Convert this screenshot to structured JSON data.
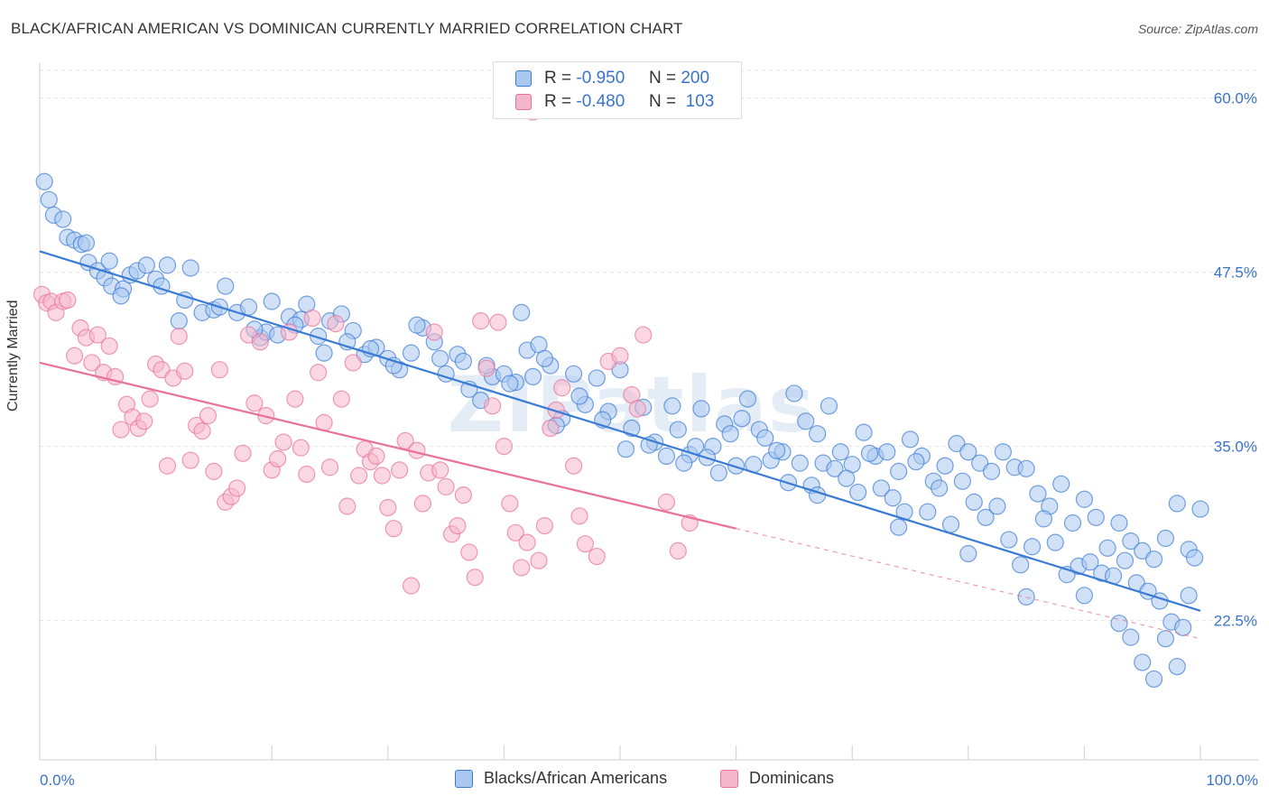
{
  "title": "BLACK/AFRICAN AMERICAN VS DOMINICAN CURRENTLY MARRIED CORRELATION CHART",
  "source": "Source: ZipAtlas.com",
  "colors": {
    "blue": "#3a7bd5",
    "blue_fill": "#a9c8f0",
    "pink": "#e8709a",
    "pink_fill": "#f5b6cb",
    "axis_text": "#3a74c9",
    "grid": "#e3e3e3"
  },
  "legend_top": {
    "rows": [
      {
        "r_label": "R =",
        "r_value": "-0.950",
        "n_label": "N =",
        "n_value": "200",
        "color": "blue"
      },
      {
        "r_label": "R =",
        "r_value": "-0.480",
        "n_label": "N =",
        "n_value": "103",
        "color": "pink"
      }
    ]
  },
  "legend_bottom": {
    "items": [
      {
        "label": "Blacks/African Americans",
        "color": "blue"
      },
      {
        "label": "Dominicans",
        "color": "pink"
      }
    ]
  },
  "chart_data": {
    "type": "scatter",
    "title": "BLACK/AFRICAN AMERICAN VS DOMINICAN CURRENTLY MARRIED CORRELATION CHART",
    "xlabel": "",
    "ylabel": "Currently Married",
    "xlim": [
      0,
      100
    ],
    "ylim": [
      12.5,
      62.5
    ],
    "x_tick_labels": [
      "0.0%",
      "100.0%"
    ],
    "y_ticks": [
      22.5,
      35.0,
      47.5,
      60.0
    ],
    "y_tick_labels": [
      "22.5%",
      "35.0%",
      "47.5%",
      "60.0%"
    ],
    "grid": true,
    "legend_position": "top-center",
    "watermark": "ZIPatlas",
    "series": [
      {
        "name": "Blacks/African Americans",
        "color": "blue",
        "R": -0.95,
        "N": 200,
        "trend": {
          "x": [
            0,
            100
          ],
          "y": [
            49.0,
            23.2
          ],
          "style": "solid"
        },
        "points": [
          [
            0.4,
            54.0
          ],
          [
            0.8,
            52.7
          ],
          [
            1.2,
            51.6
          ],
          [
            2.0,
            51.3
          ],
          [
            2.4,
            50.0
          ],
          [
            3.0,
            49.8
          ],
          [
            3.6,
            49.5
          ],
          [
            4.2,
            48.2
          ],
          [
            5.0,
            47.6
          ],
          [
            5.6,
            47.1
          ],
          [
            6.2,
            46.5
          ],
          [
            7.2,
            46.3
          ],
          [
            7.8,
            47.3
          ],
          [
            8.4,
            47.6
          ],
          [
            9.2,
            48.0
          ],
          [
            10.0,
            47.0
          ],
          [
            11.0,
            48.0
          ],
          [
            12.5,
            45.5
          ],
          [
            14.0,
            44.6
          ],
          [
            15.0,
            44.8
          ],
          [
            16.0,
            46.5
          ],
          [
            17.0,
            44.6
          ],
          [
            18.0,
            45.0
          ],
          [
            19.0,
            42.8
          ],
          [
            19.5,
            43.2
          ],
          [
            20.5,
            43.0
          ],
          [
            21.5,
            44.3
          ],
          [
            22.5,
            44.1
          ],
          [
            23.0,
            45.2
          ],
          [
            24.0,
            42.9
          ],
          [
            25.0,
            44.0
          ],
          [
            26.0,
            44.5
          ],
          [
            27.0,
            43.3
          ],
          [
            28.0,
            41.6
          ],
          [
            29.0,
            42.1
          ],
          [
            30.0,
            41.3
          ],
          [
            31.0,
            40.5
          ],
          [
            32.0,
            41.7
          ],
          [
            33.0,
            43.5
          ],
          [
            34.0,
            42.5
          ],
          [
            35.0,
            40.2
          ],
          [
            36.0,
            41.6
          ],
          [
            37.0,
            39.1
          ],
          [
            38.0,
            38.3
          ],
          [
            39.0,
            40.0
          ],
          [
            40.0,
            40.2
          ],
          [
            41.0,
            39.6
          ],
          [
            42.0,
            41.9
          ],
          [
            43.0,
            42.3
          ],
          [
            44.0,
            40.8
          ],
          [
            45.0,
            37.0
          ],
          [
            46.0,
            40.2
          ],
          [
            47.0,
            38.0
          ],
          [
            48.0,
            39.9
          ],
          [
            49.0,
            37.5
          ],
          [
            50.0,
            40.5
          ],
          [
            51.0,
            36.3
          ],
          [
            52.0,
            37.8
          ],
          [
            53.0,
            35.3
          ],
          [
            54.0,
            34.3
          ],
          [
            55.0,
            36.2
          ],
          [
            56.0,
            34.4
          ],
          [
            57.0,
            37.7
          ],
          [
            58.0,
            35.0
          ],
          [
            59.0,
            36.6
          ],
          [
            60.0,
            33.6
          ],
          [
            61.0,
            38.4
          ],
          [
            62.0,
            36.2
          ],
          [
            63.0,
            34.0
          ],
          [
            64.0,
            34.6
          ],
          [
            65.0,
            38.8
          ],
          [
            66.0,
            36.8
          ],
          [
            67.0,
            35.9
          ],
          [
            68.0,
            37.9
          ],
          [
            69.0,
            34.6
          ],
          [
            70.0,
            33.7
          ],
          [
            71.0,
            36.0
          ],
          [
            72.0,
            34.3
          ],
          [
            73.0,
            34.6
          ],
          [
            74.0,
            33.2
          ],
          [
            75.0,
            35.5
          ],
          [
            76.0,
            34.3
          ],
          [
            77.0,
            32.5
          ],
          [
            78.0,
            33.6
          ],
          [
            79.0,
            35.2
          ],
          [
            80.0,
            34.6
          ],
          [
            81.0,
            33.8
          ],
          [
            82.0,
            33.2
          ],
          [
            83.0,
            34.6
          ],
          [
            84.0,
            33.5
          ],
          [
            85.0,
            33.4
          ],
          [
            86.0,
            31.6
          ],
          [
            87.0,
            30.7
          ],
          [
            88.0,
            32.3
          ],
          [
            89.0,
            29.5
          ],
          [
            90.0,
            31.2
          ],
          [
            91.0,
            29.9
          ],
          [
            92.0,
            27.7
          ],
          [
            93.0,
            29.5
          ],
          [
            94.0,
            28.2
          ],
          [
            95.0,
            27.5
          ],
          [
            96.0,
            26.9
          ],
          [
            97.0,
            28.4
          ],
          [
            98.0,
            30.9
          ],
          [
            99.0,
            27.6
          ],
          [
            99.5,
            27.0
          ],
          [
            100.0,
            30.5
          ],
          [
            12.0,
            44.0
          ],
          [
            7.0,
            45.8
          ],
          [
            4.0,
            49.6
          ],
          [
            6.0,
            48.3
          ],
          [
            10.5,
            46.5
          ],
          [
            13.0,
            47.8
          ],
          [
            15.5,
            45.0
          ],
          [
            18.5,
            43.4
          ],
          [
            20.0,
            45.4
          ],
          [
            22.0,
            43.7
          ],
          [
            24.5,
            41.7
          ],
          [
            26.5,
            42.5
          ],
          [
            28.5,
            42.0
          ],
          [
            30.5,
            40.8
          ],
          [
            32.5,
            43.7
          ],
          [
            34.5,
            41.3
          ],
          [
            36.5,
            41.1
          ],
          [
            38.5,
            40.8
          ],
          [
            40.5,
            39.5
          ],
          [
            41.5,
            44.6
          ],
          [
            42.5,
            40.0
          ],
          [
            43.5,
            41.3
          ],
          [
            44.5,
            36.5
          ],
          [
            46.5,
            38.6
          ],
          [
            48.5,
            36.9
          ],
          [
            50.5,
            34.8
          ],
          [
            52.5,
            35.1
          ],
          [
            54.5,
            37.9
          ],
          [
            55.5,
            33.8
          ],
          [
            56.5,
            35.0
          ],
          [
            57.5,
            34.2
          ],
          [
            58.5,
            33.1
          ],
          [
            59.5,
            35.9
          ],
          [
            60.5,
            37.0
          ],
          [
            61.5,
            33.7
          ],
          [
            62.5,
            35.6
          ],
          [
            63.5,
            34.7
          ],
          [
            64.5,
            32.4
          ],
          [
            65.5,
            33.8
          ],
          [
            66.5,
            32.2
          ],
          [
            67.5,
            33.8
          ],
          [
            68.5,
            33.4
          ],
          [
            69.5,
            32.7
          ],
          [
            70.5,
            31.7
          ],
          [
            71.5,
            34.5
          ],
          [
            72.5,
            32.0
          ],
          [
            73.5,
            31.3
          ],
          [
            74.5,
            30.3
          ],
          [
            75.5,
            33.9
          ],
          [
            76.5,
            30.3
          ],
          [
            77.5,
            32.0
          ],
          [
            78.5,
            29.4
          ],
          [
            79.5,
            32.5
          ],
          [
            80.5,
            31.0
          ],
          [
            81.5,
            29.9
          ],
          [
            82.5,
            30.7
          ],
          [
            83.5,
            28.3
          ],
          [
            84.5,
            26.5
          ],
          [
            85.5,
            27.8
          ],
          [
            86.5,
            29.8
          ],
          [
            87.5,
            28.1
          ],
          [
            88.5,
            25.8
          ],
          [
            89.5,
            26.4
          ],
          [
            90.5,
            26.7
          ],
          [
            91.5,
            25.9
          ],
          [
            92.5,
            25.7
          ],
          [
            93.5,
            26.8
          ],
          [
            94.5,
            25.2
          ],
          [
            95.5,
            24.6
          ],
          [
            96.5,
            23.9
          ],
          [
            97.5,
            22.4
          ],
          [
            98.5,
            22.0
          ],
          [
            99.0,
            24.3
          ],
          [
            67.0,
            31.5
          ],
          [
            74.0,
            29.2
          ],
          [
            80.0,
            27.3
          ],
          [
            85.0,
            24.2
          ],
          [
            90.0,
            24.3
          ],
          [
            93.0,
            22.3
          ],
          [
            94.0,
            21.3
          ],
          [
            95.0,
            19.5
          ],
          [
            96.0,
            18.3
          ],
          [
            97.0,
            21.2
          ],
          [
            98.0,
            19.2
          ]
        ]
      },
      {
        "name": "Dominicans",
        "color": "pink",
        "R": -0.48,
        "N": 103,
        "trend": {
          "x": [
            0,
            60
          ],
          "y": [
            41.0,
            29.1
          ],
          "style": "solid"
        },
        "trend_extension": {
          "x": [
            60,
            100
          ],
          "y": [
            29.1,
            21.2
          ],
          "style": "dashed"
        },
        "points": [
          [
            0.2,
            45.9
          ],
          [
            0.6,
            45.3
          ],
          [
            1.0,
            45.4
          ],
          [
            1.4,
            44.6
          ],
          [
            2.0,
            45.4
          ],
          [
            2.4,
            45.5
          ],
          [
            3.0,
            41.5
          ],
          [
            3.5,
            43.5
          ],
          [
            4.0,
            42.8
          ],
          [
            4.5,
            41.0
          ],
          [
            5.0,
            43.0
          ],
          [
            5.5,
            40.3
          ],
          [
            6.0,
            42.2
          ],
          [
            6.5,
            40.0
          ],
          [
            7.0,
            36.2
          ],
          [
            7.5,
            38.0
          ],
          [
            8.0,
            37.1
          ],
          [
            8.5,
            36.3
          ],
          [
            9.0,
            36.8
          ],
          [
            9.5,
            38.4
          ],
          [
            10.0,
            40.9
          ],
          [
            10.5,
            40.5
          ],
          [
            11.0,
            33.6
          ],
          [
            11.5,
            39.9
          ],
          [
            12.0,
            42.9
          ],
          [
            12.5,
            40.4
          ],
          [
            13.0,
            34.0
          ],
          [
            13.5,
            36.5
          ],
          [
            14.0,
            36.1
          ],
          [
            14.5,
            37.2
          ],
          [
            15.0,
            33.2
          ],
          [
            15.5,
            40.5
          ],
          [
            16.0,
            31.0
          ],
          [
            16.5,
            31.4
          ],
          [
            17.0,
            32.0
          ],
          [
            17.5,
            34.5
          ],
          [
            18.0,
            43.0
          ],
          [
            18.5,
            38.1
          ],
          [
            19.0,
            42.5
          ],
          [
            19.5,
            37.2
          ],
          [
            20.0,
            33.3
          ],
          [
            20.5,
            34.1
          ],
          [
            21.0,
            35.3
          ],
          [
            21.5,
            43.2
          ],
          [
            22.0,
            38.4
          ],
          [
            22.5,
            34.9
          ],
          [
            23.0,
            33.0
          ],
          [
            23.5,
            44.2
          ],
          [
            24.0,
            40.3
          ],
          [
            24.5,
            36.7
          ],
          [
            25.0,
            33.5
          ],
          [
            25.5,
            43.8
          ],
          [
            26.0,
            38.4
          ],
          [
            26.5,
            30.7
          ],
          [
            27.0,
            41.0
          ],
          [
            27.5,
            32.9
          ],
          [
            28.0,
            34.8
          ],
          [
            28.5,
            33.9
          ],
          [
            29.0,
            34.3
          ],
          [
            29.5,
            32.9
          ],
          [
            30.0,
            30.6
          ],
          [
            30.5,
            29.1
          ],
          [
            31.0,
            33.3
          ],
          [
            31.5,
            35.4
          ],
          [
            32.0,
            25.0
          ],
          [
            32.5,
            34.7
          ],
          [
            33.0,
            30.9
          ],
          [
            33.5,
            33.1
          ],
          [
            34.0,
            43.2
          ],
          [
            34.5,
            33.3
          ],
          [
            35.0,
            32.1
          ],
          [
            35.5,
            28.7
          ],
          [
            36.0,
            29.3
          ],
          [
            36.5,
            31.5
          ],
          [
            37.0,
            27.4
          ],
          [
            37.5,
            25.6
          ],
          [
            38.0,
            44.0
          ],
          [
            38.5,
            40.6
          ],
          [
            39.0,
            37.9
          ],
          [
            39.5,
            43.9
          ],
          [
            40.0,
            35.0
          ],
          [
            40.5,
            30.9
          ],
          [
            41.0,
            28.8
          ],
          [
            41.5,
            26.3
          ],
          [
            42.0,
            28.1
          ],
          [
            42.5,
            59.0
          ],
          [
            43.0,
            26.8
          ],
          [
            43.5,
            29.3
          ],
          [
            44.0,
            36.3
          ],
          [
            44.5,
            37.6
          ],
          [
            45.0,
            39.2
          ],
          [
            46.0,
            33.6
          ],
          [
            46.5,
            30.0
          ],
          [
            47.0,
            28.0
          ],
          [
            48.0,
            27.1
          ],
          [
            49.0,
            41.1
          ],
          [
            50.0,
            41.5
          ],
          [
            51.0,
            38.7
          ],
          [
            51.5,
            37.7
          ],
          [
            52.0,
            43.0
          ],
          [
            54.0,
            31.0
          ],
          [
            55.0,
            27.5
          ],
          [
            56.0,
            29.5
          ]
        ]
      }
    ]
  }
}
